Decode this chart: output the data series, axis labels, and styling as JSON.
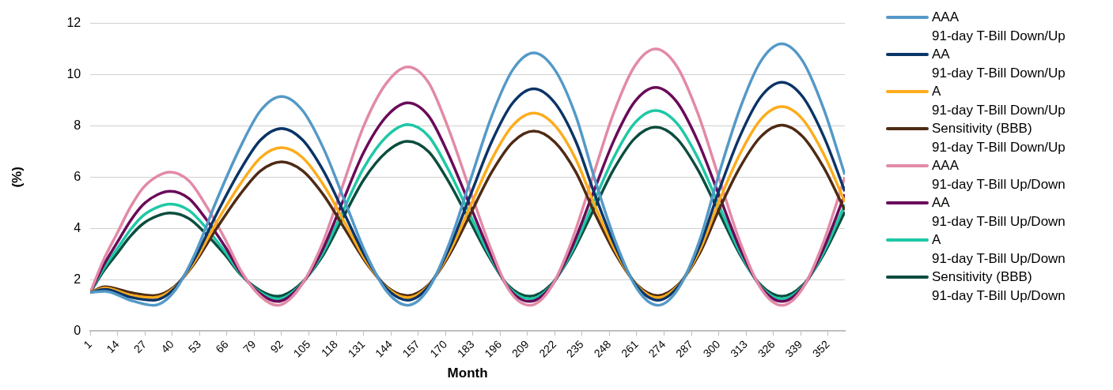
{
  "chart_data": {
    "type": "line",
    "xlabel": "Month",
    "ylabel": "(%)",
    "xlim": [
      1,
      360
    ],
    "xticks": [
      1,
      14,
      27,
      40,
      53,
      66,
      79,
      92,
      105,
      118,
      131,
      144,
      157,
      170,
      183,
      196,
      209,
      222,
      235,
      248,
      261,
      274,
      287,
      300,
      313,
      326,
      339,
      352
    ],
    "ylim": [
      0,
      12
    ],
    "yticks": [
      0,
      2,
      4,
      6,
      8,
      10,
      12
    ],
    "grid": "y",
    "legend": "right",
    "marker": "none",
    "line_style": "solid",
    "series": [
      {
        "name": "AAA\n91-day T-Bill Down/Up",
        "color": "#5499c7",
        "x": [
          1,
          8,
          20,
          31,
          41,
          51,
          61,
          72,
          82,
          92,
          102,
          112,
          122,
          132,
          142,
          152,
          162,
          172,
          182,
          192,
          202,
          212,
          222,
          232,
          241,
          251,
          261,
          271,
          281,
          291,
          300,
          310,
          320,
          330,
          340,
          350,
          360
        ],
        "values": [
          1.5,
          1.55,
          1.2,
          1.0,
          1.55,
          3.04,
          5.08,
          7.11,
          8.6,
          9.15,
          8.6,
          7.11,
          5.08,
          3.04,
          1.55,
          1.0,
          1.66,
          3.46,
          5.93,
          8.39,
          10.19,
          10.85,
          10.19,
          8.39,
          5.93,
          3.46,
          1.66,
          1.0,
          1.68,
          3.55,
          6.1,
          8.65,
          10.52,
          11.2,
          10.52,
          8.65,
          6.1
        ]
      },
      {
        "name": "AA\n91-day T-Bill Down/Up",
        "color": "#0b3467",
        "x": [
          1,
          8,
          20,
          31,
          41,
          51,
          61,
          72,
          82,
          92,
          102,
          112,
          122,
          132,
          142,
          152,
          162,
          172,
          182,
          192,
          202,
          212,
          222,
          232,
          241,
          251,
          261,
          271,
          281,
          291,
          300,
          310,
          320,
          330,
          340,
          350,
          360
        ],
        "values": [
          1.5,
          1.62,
          1.32,
          1.2,
          1.65,
          2.88,
          4.55,
          6.23,
          7.45,
          7.9,
          7.45,
          6.23,
          4.55,
          2.88,
          1.65,
          1.2,
          1.75,
          3.26,
          5.33,
          7.39,
          8.9,
          9.45,
          8.9,
          7.39,
          5.33,
          3.26,
          1.75,
          1.2,
          1.77,
          3.33,
          5.45,
          7.58,
          9.13,
          9.7,
          9.13,
          7.58,
          5.45
        ]
      },
      {
        "name": "A\n91-day T-Bill Down/Up",
        "color": "#fdac1c",
        "x": [
          1,
          8,
          20,
          31,
          41,
          51,
          61,
          72,
          82,
          92,
          102,
          112,
          122,
          132,
          142,
          152,
          162,
          172,
          182,
          192,
          202,
          212,
          222,
          232,
          241,
          251,
          261,
          271,
          281,
          291,
          300,
          310,
          320,
          330,
          340,
          350,
          360
        ],
        "values": [
          1.5,
          1.68,
          1.4,
          1.3,
          1.69,
          2.76,
          4.23,
          5.69,
          6.76,
          7.15,
          6.76,
          5.69,
          4.23,
          2.76,
          1.69,
          1.3,
          1.78,
          3.1,
          4.9,
          6.7,
          8.02,
          8.5,
          8.02,
          6.7,
          4.9,
          3.1,
          1.78,
          1.3,
          1.8,
          3.16,
          5.03,
          6.89,
          8.25,
          8.75,
          8.25,
          6.89,
          5.03
        ]
      },
      {
        "name": "Sensitivity (BBB)\n91-day T-Bill Down/Up",
        "color": "#4f2b14",
        "x": [
          1,
          8,
          20,
          31,
          41,
          51,
          61,
          72,
          82,
          92,
          102,
          112,
          122,
          132,
          142,
          152,
          162,
          172,
          182,
          192,
          202,
          212,
          222,
          232,
          241,
          251,
          261,
          271,
          281,
          291,
          300,
          310,
          320,
          330,
          340,
          350,
          360
        ],
        "values": [
          1.5,
          1.72,
          1.5,
          1.38,
          1.73,
          2.69,
          3.99,
          5.3,
          6.25,
          6.6,
          6.25,
          5.3,
          3.99,
          2.69,
          1.73,
          1.38,
          1.81,
          2.99,
          4.59,
          6.2,
          7.37,
          7.8,
          7.37,
          6.2,
          4.59,
          2.99,
          1.81,
          1.38,
          1.83,
          3.04,
          4.71,
          6.37,
          7.58,
          8.03,
          7.58,
          6.37,
          4.71
        ]
      },
      {
        "name": "AAA\n91-day T-Bill Up/Down",
        "color": "#e28aa6",
        "x": [
          1,
          7,
          14,
          20,
          26,
          33,
          39,
          48,
          56,
          65,
          73,
          82,
          90,
          100,
          111,
          121,
          131,
          142,
          152,
          162,
          171,
          181,
          191,
          200,
          210,
          220,
          230,
          240,
          250,
          260,
          270,
          280,
          290,
          300,
          310,
          320,
          330,
          340,
          350,
          360
        ],
        "values": [
          1.5,
          2.72,
          3.85,
          4.82,
          5.57,
          6.04,
          6.2,
          5.85,
          4.9,
          3.6,
          2.3,
          1.35,
          1.0,
          1.62,
          3.33,
          5.65,
          7.98,
          9.68,
          10.3,
          9.68,
          7.98,
          5.65,
          3.33,
          1.62,
          1.0,
          1.67,
          3.5,
          6.0,
          8.5,
          10.33,
          11.0,
          10.33,
          8.5,
          6.0,
          3.5,
          1.67,
          1.0,
          1.67,
          3.5,
          6.0
        ]
      },
      {
        "name": "AA\n91-day T-Bill Up/Down",
        "color": "#6a0a5a",
        "x": [
          1,
          7,
          14,
          20,
          26,
          33,
          39,
          48,
          56,
          65,
          73,
          82,
          90,
          100,
          111,
          121,
          131,
          142,
          152,
          162,
          171,
          181,
          191,
          200,
          210,
          220,
          230,
          240,
          250,
          260,
          270,
          280,
          290,
          300,
          310,
          320,
          330,
          340,
          350,
          360
        ],
        "values": [
          1.5,
          2.52,
          3.48,
          4.29,
          4.92,
          5.32,
          5.45,
          5.16,
          4.37,
          3.3,
          2.23,
          1.44,
          1.15,
          1.67,
          3.09,
          5.03,
          6.96,
          8.38,
          8.9,
          8.38,
          6.96,
          5.03,
          3.09,
          1.67,
          1.15,
          1.71,
          3.24,
          5.33,
          7.41,
          8.94,
          9.5,
          8.94,
          7.41,
          5.33,
          3.24,
          1.71,
          1.15,
          1.71,
          3.24,
          5.33
        ]
      },
      {
        "name": "A\n91-day T-Bill Up/Down",
        "color": "#1ec8a5",
        "x": [
          1,
          7,
          14,
          20,
          26,
          33,
          39,
          48,
          56,
          65,
          73,
          82,
          90,
          100,
          111,
          121,
          131,
          142,
          152,
          162,
          171,
          181,
          191,
          200,
          210,
          220,
          230,
          240,
          250,
          260,
          270,
          280,
          290,
          300,
          310,
          320,
          330,
          340,
          350,
          360
        ],
        "values": [
          1.5,
          2.39,
          3.23,
          3.94,
          4.49,
          4.83,
          4.95,
          4.7,
          4.03,
          3.1,
          2.18,
          1.5,
          1.25,
          1.71,
          2.95,
          4.65,
          6.35,
          7.59,
          8.05,
          7.59,
          6.35,
          4.65,
          2.95,
          1.71,
          1.25,
          1.74,
          3.09,
          4.93,
          6.76,
          8.11,
          8.6,
          8.11,
          6.76,
          4.93,
          3.09,
          1.74,
          1.25,
          1.74,
          3.09,
          4.93
        ]
      },
      {
        "name": "Sensitivity (BBB)\n91-day T-Bill Up/Down",
        "color": "#0b4d3f",
        "x": [
          1,
          7,
          14,
          20,
          26,
          33,
          39,
          48,
          56,
          65,
          73,
          82,
          90,
          100,
          111,
          121,
          131,
          142,
          152,
          162,
          171,
          181,
          191,
          200,
          210,
          220,
          230,
          240,
          250,
          260,
          270,
          280,
          290,
          300,
          310,
          320,
          330,
          340,
          350,
          360
        ],
        "values": [
          1.5,
          2.3,
          3.05,
          3.69,
          4.18,
          4.49,
          4.6,
          4.38,
          3.79,
          2.98,
          2.16,
          1.57,
          1.35,
          1.76,
          2.86,
          4.38,
          5.89,
          6.99,
          7.4,
          6.99,
          5.89,
          4.38,
          2.86,
          1.76,
          1.35,
          1.79,
          3.0,
          4.65,
          6.3,
          7.51,
          7.95,
          7.51,
          6.3,
          4.65,
          3.0,
          1.79,
          1.35,
          1.79,
          3.0,
          4.65
        ]
      }
    ]
  }
}
